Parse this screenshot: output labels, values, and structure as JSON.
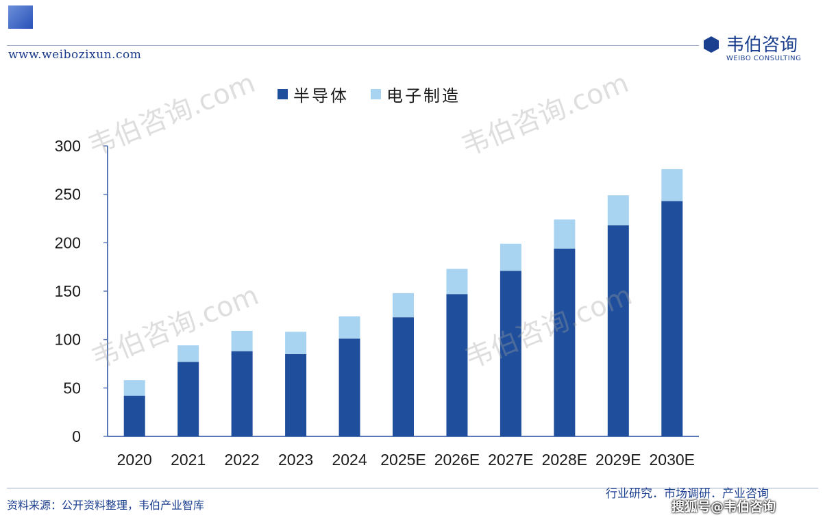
{
  "header": {
    "site_url": "www.weibozixun.com",
    "brand_name": "韦伯咨询",
    "brand_sub": "WEIBO CONSULTING"
  },
  "watermark_text": "韦伯咨询.com",
  "chart_data": {
    "type": "bar",
    "stacked": true,
    "categories": [
      "2020",
      "2021",
      "2022",
      "2023",
      "2024",
      "2025E",
      "2026E",
      "2027E",
      "2028E",
      "2029E",
      "2030E"
    ],
    "series": [
      {
        "name": "半导体",
        "color": "#1f4f9c",
        "values": [
          42,
          77,
          88,
          85,
          101,
          123,
          147,
          171,
          194,
          218,
          243
        ]
      },
      {
        "name": "电子制造",
        "color": "#a8d4f2",
        "values": [
          16,
          17,
          21,
          23,
          23,
          25,
          26,
          28,
          30,
          31,
          33
        ]
      }
    ],
    "ylim": [
      0,
      300
    ],
    "yticks": [
      "0",
      "50",
      "100",
      "150",
      "200",
      "250",
      "300"
    ],
    "grid": false,
    "legend_position": "top-center"
  },
  "footer": {
    "source": "资料来源：公开资料整理，韦伯产业智库",
    "tagline": "行业研究．市场调研．产业咨询",
    "credit": "搜狐号@韦伯咨询"
  }
}
